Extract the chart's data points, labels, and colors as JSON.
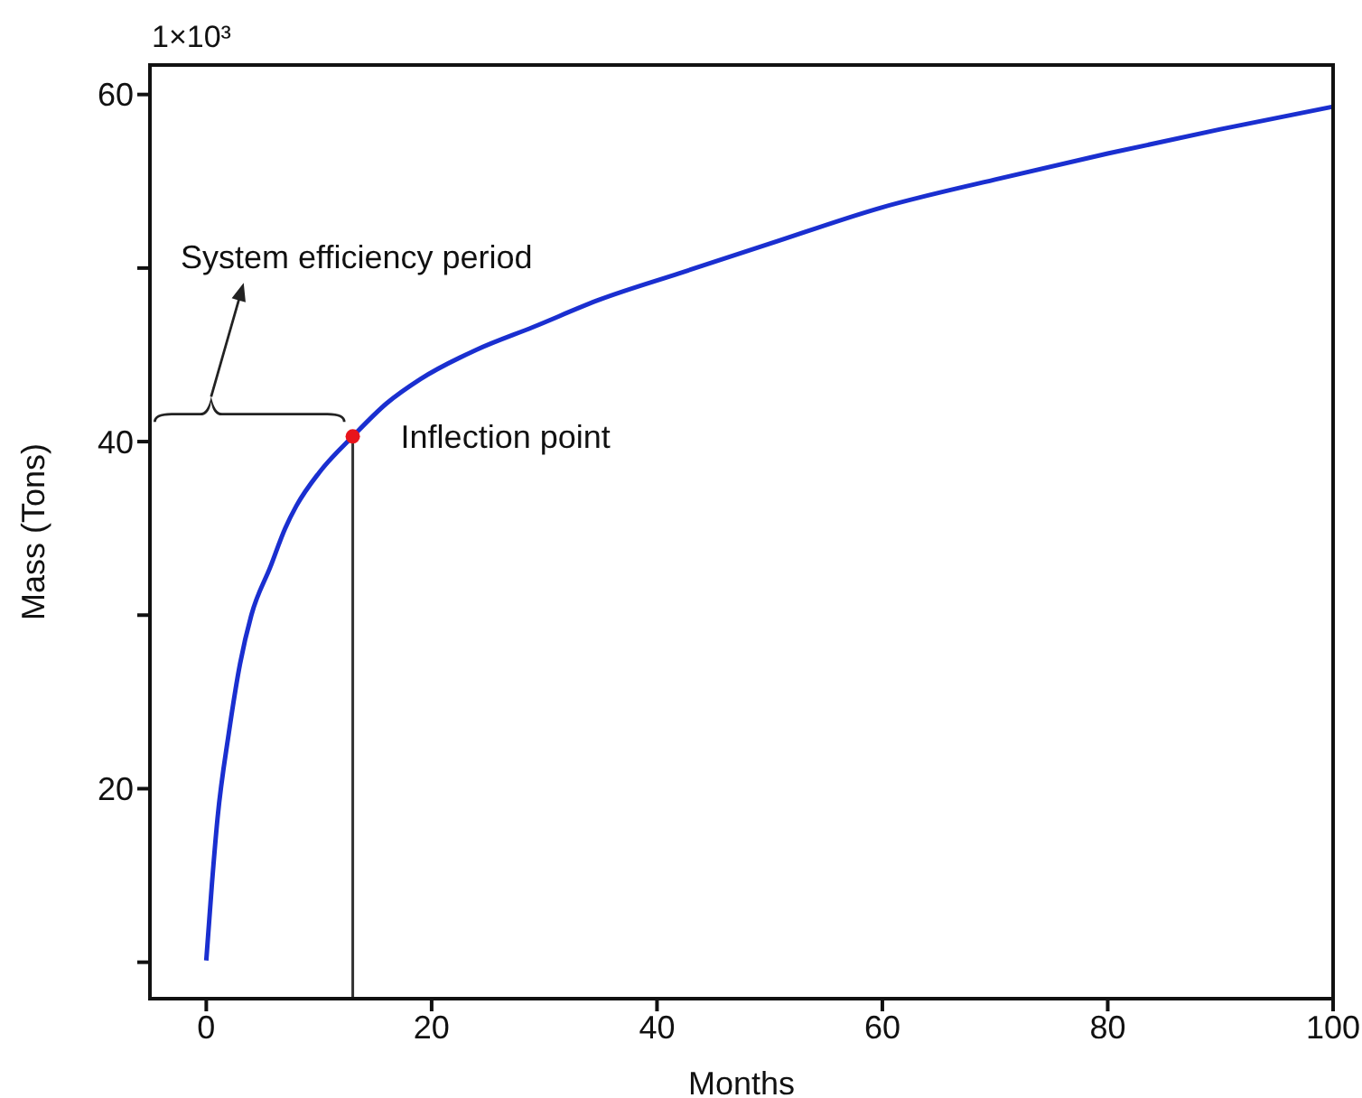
{
  "chart_data": {
    "type": "line",
    "xlabel": "Months",
    "ylabel": "Mass (Tons)",
    "annotations": [
      "1×10³",
      "System efficiency period"
    ],
    "xlim": [
      -5,
      100
    ],
    "ylim": [
      7.9,
      61.7
    ],
    "xticks": [
      0,
      20,
      40,
      60,
      80,
      100
    ],
    "yticks": [
      {
        "value": 10,
        "label": null
      },
      20,
      {
        "value": 30,
        "label": null
      },
      40,
      {
        "value": 50,
        "label": null
      },
      60
    ],
    "grid": false,
    "legend": false,
    "series": [
      {
        "type": "line",
        "color": "#1a2fd0",
        "x": [
          0,
          0.5,
          1,
          2,
          3,
          4,
          5.7,
          7,
          8,
          10,
          13,
          16,
          19,
          24,
          29,
          35,
          42,
          50,
          60,
          70,
          80,
          90,
          100
        ],
        "values": [
          10.1,
          14.5,
          18.3,
          23.2,
          27.2,
          30,
          32.8,
          35,
          36.3,
          38.2,
          40.3,
          42.2,
          43.6,
          45.3,
          46.6,
          48.2,
          49.7,
          51.4,
          53.5,
          55.1,
          56.6,
          58,
          59.3
        ]
      },
      {
        "type": "scatter",
        "name": "Inflection point",
        "color": "#e8141b",
        "x": [
          13
        ],
        "values": [
          40.3
        ]
      }
    ],
    "ref_lines": [
      {
        "axis": "x",
        "value": 13
      }
    ]
  }
}
